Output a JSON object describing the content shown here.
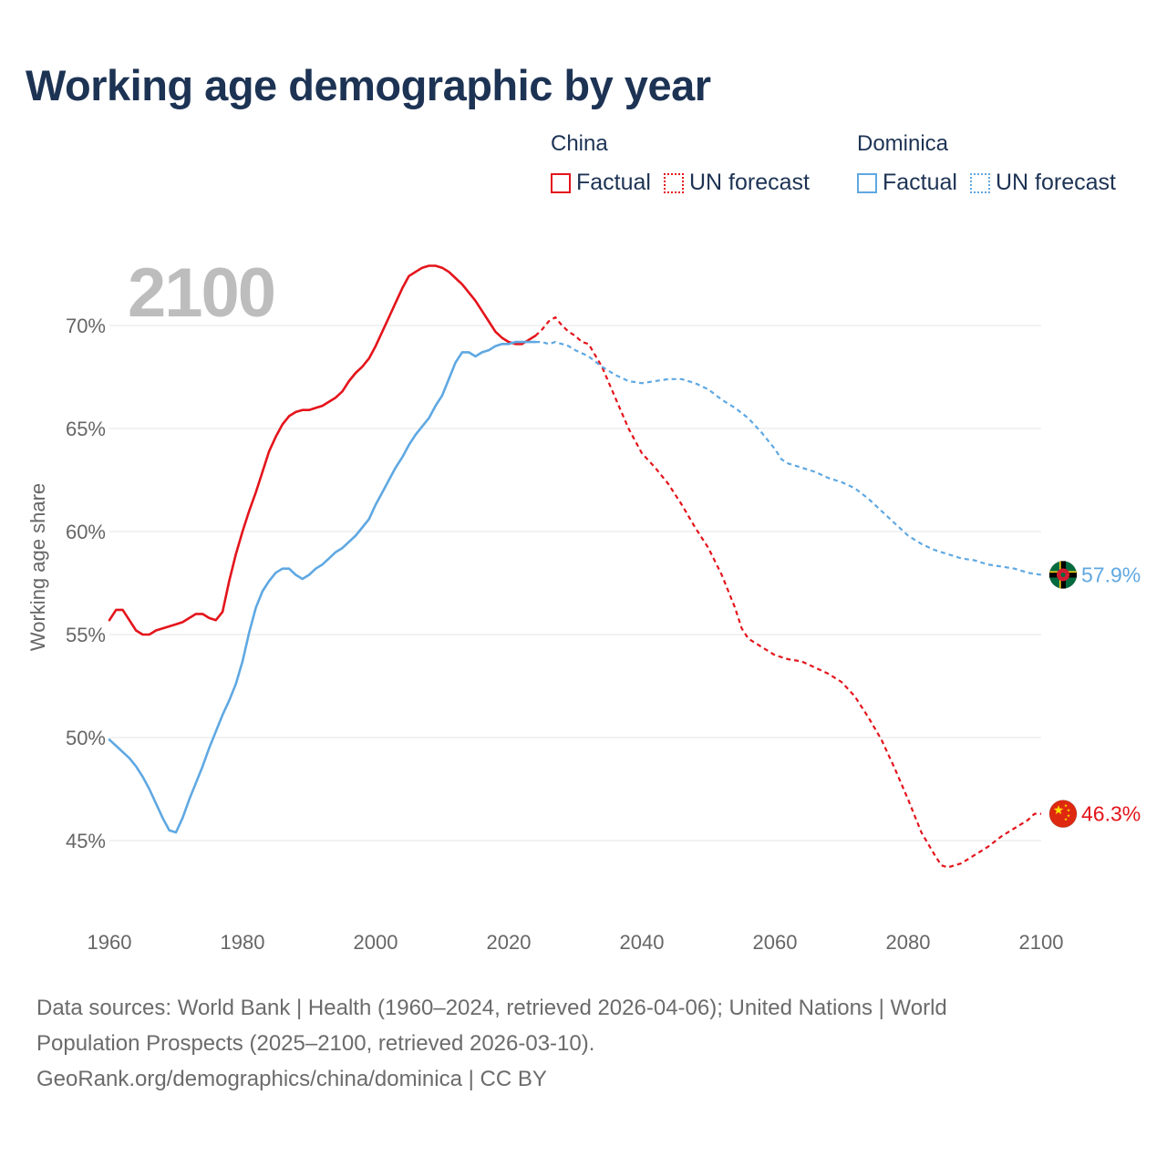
{
  "title": "Working age demographic by year",
  "year_label": "2100",
  "legend": {
    "groups": [
      {
        "name": "China",
        "factual": "Factual",
        "forecast": "UN forecast",
        "color": "#e4141b"
      },
      {
        "name": "Dominica",
        "factual": "Factual",
        "forecast": "UN forecast",
        "color": "#5fa8e2"
      }
    ]
  },
  "footer": {
    "line1": "Data sources: World Bank | Health (1960–2024, retrieved 2026-04-06); United Nations | World",
    "line2": "Population Prospects (2025–2100, retrieved 2026-03-10).",
    "line3": "GeoRank.org/demographics/china/dominica | CC BY"
  },
  "chart_data": {
    "type": "line",
    "title": "Working age demographic by year",
    "xlabel": "",
    "ylabel": "Working age share",
    "xlim": [
      1960,
      2100
    ],
    "ylim": [
      43,
      72.5
    ],
    "x_ticks": [
      1960,
      1980,
      2000,
      2020,
      2040,
      2060,
      2080,
      2100
    ],
    "x_tick_labels": [
      "1960",
      "1980",
      "2000",
      "2020",
      "2040",
      "2060",
      "2080",
      "2100"
    ],
    "y_ticks": [
      45,
      50,
      55,
      60,
      65,
      70
    ],
    "y_tick_labels": [
      "45%",
      "50%",
      "55%",
      "60%",
      "65%",
      "70%"
    ],
    "grid": true,
    "factual_range": [
      1960,
      2024
    ],
    "forecast_range": [
      2024,
      2100
    ],
    "series": [
      {
        "name": "China",
        "color": "#e4141b",
        "end_label": "46.3%",
        "points": [
          [
            1960,
            55.7
          ],
          [
            1961,
            56.2
          ],
          [
            1962,
            56.2
          ],
          [
            1963,
            55.7
          ],
          [
            1964,
            55.2
          ],
          [
            1965,
            55.0
          ],
          [
            1966,
            55.0
          ],
          [
            1967,
            55.2
          ],
          [
            1968,
            55.3
          ],
          [
            1969,
            55.4
          ],
          [
            1970,
            55.5
          ],
          [
            1971,
            55.6
          ],
          [
            1972,
            55.8
          ],
          [
            1973,
            56.0
          ],
          [
            1974,
            56.0
          ],
          [
            1975,
            55.8
          ],
          [
            1976,
            55.7
          ],
          [
            1977,
            56.1
          ],
          [
            1978,
            57.6
          ],
          [
            1979,
            58.9
          ],
          [
            1980,
            60.0
          ],
          [
            1981,
            61.0
          ],
          [
            1982,
            61.9
          ],
          [
            1983,
            62.9
          ],
          [
            1984,
            63.9
          ],
          [
            1985,
            64.6
          ],
          [
            1986,
            65.2
          ],
          [
            1987,
            65.6
          ],
          [
            1988,
            65.8
          ],
          [
            1989,
            65.9
          ],
          [
            1990,
            65.9
          ],
          [
            1991,
            66.0
          ],
          [
            1992,
            66.1
          ],
          [
            1993,
            66.3
          ],
          [
            1994,
            66.5
          ],
          [
            1995,
            66.8
          ],
          [
            1996,
            67.3
          ],
          [
            1997,
            67.7
          ],
          [
            1998,
            68.0
          ],
          [
            1999,
            68.4
          ],
          [
            2000,
            69.0
          ],
          [
            2001,
            69.7
          ],
          [
            2002,
            70.4
          ],
          [
            2003,
            71.1
          ],
          [
            2004,
            71.8
          ],
          [
            2005,
            72.4
          ],
          [
            2006,
            72.6
          ],
          [
            2007,
            72.8
          ],
          [
            2008,
            72.9
          ],
          [
            2009,
            72.9
          ],
          [
            2010,
            72.8
          ],
          [
            2011,
            72.6
          ],
          [
            2012,
            72.3
          ],
          [
            2013,
            72.0
          ],
          [
            2014,
            71.6
          ],
          [
            2015,
            71.2
          ],
          [
            2016,
            70.7
          ],
          [
            2017,
            70.2
          ],
          [
            2018,
            69.7
          ],
          [
            2019,
            69.4
          ],
          [
            2020,
            69.2
          ],
          [
            2021,
            69.1
          ],
          [
            2022,
            69.1
          ],
          [
            2023,
            69.3
          ],
          [
            2024,
            69.5
          ],
          [
            2025,
            69.8
          ],
          [
            2026,
            70.2
          ],
          [
            2027,
            70.4
          ],
          [
            2028,
            70.0
          ],
          [
            2029,
            69.7
          ],
          [
            2030,
            69.5
          ],
          [
            2031,
            69.2
          ],
          [
            2032,
            69.1
          ],
          [
            2034,
            68.0
          ],
          [
            2036,
            66.5
          ],
          [
            2038,
            65.0
          ],
          [
            2040,
            63.8
          ],
          [
            2042,
            63.1
          ],
          [
            2044,
            62.3
          ],
          [
            2046,
            61.3
          ],
          [
            2048,
            60.2
          ],
          [
            2050,
            59.2
          ],
          [
            2052,
            57.9
          ],
          [
            2054,
            56.3
          ],
          [
            2055,
            55.3
          ],
          [
            2056,
            54.8
          ],
          [
            2058,
            54.4
          ],
          [
            2060,
            54.0
          ],
          [
            2062,
            53.8
          ],
          [
            2064,
            53.7
          ],
          [
            2066,
            53.4
          ],
          [
            2068,
            53.1
          ],
          [
            2070,
            52.7
          ],
          [
            2072,
            52.0
          ],
          [
            2074,
            51.0
          ],
          [
            2076,
            49.9
          ],
          [
            2078,
            48.5
          ],
          [
            2080,
            47.0
          ],
          [
            2082,
            45.4
          ],
          [
            2084,
            44.3
          ],
          [
            2085,
            43.8
          ],
          [
            2086,
            43.7
          ],
          [
            2087,
            43.8
          ],
          [
            2088,
            43.9
          ],
          [
            2090,
            44.3
          ],
          [
            2092,
            44.7
          ],
          [
            2094,
            45.2
          ],
          [
            2096,
            45.6
          ],
          [
            2098,
            46.0
          ],
          [
            2099,
            46.3
          ],
          [
            2100,
            46.3
          ]
        ]
      },
      {
        "name": "Dominica",
        "color": "#5fa8e2",
        "end_label": "57.9%",
        "points": [
          [
            1960,
            49.9
          ],
          [
            1961,
            49.6
          ],
          [
            1962,
            49.3
          ],
          [
            1963,
            49.0
          ],
          [
            1964,
            48.6
          ],
          [
            1965,
            48.1
          ],
          [
            1966,
            47.5
          ],
          [
            1967,
            46.8
          ],
          [
            1968,
            46.1
          ],
          [
            1969,
            45.5
          ],
          [
            1970,
            45.4
          ],
          [
            1971,
            46.1
          ],
          [
            1972,
            47.0
          ],
          [
            1973,
            47.8
          ],
          [
            1974,
            48.6
          ],
          [
            1975,
            49.5
          ],
          [
            1976,
            50.3
          ],
          [
            1977,
            51.1
          ],
          [
            1978,
            51.8
          ],
          [
            1979,
            52.6
          ],
          [
            1980,
            53.7
          ],
          [
            1981,
            55.1
          ],
          [
            1982,
            56.3
          ],
          [
            1983,
            57.1
          ],
          [
            1984,
            57.6
          ],
          [
            1985,
            58.0
          ],
          [
            1986,
            58.2
          ],
          [
            1987,
            58.2
          ],
          [
            1988,
            57.9
          ],
          [
            1989,
            57.7
          ],
          [
            1990,
            57.9
          ],
          [
            1991,
            58.2
          ],
          [
            1992,
            58.4
          ],
          [
            1993,
            58.7
          ],
          [
            1994,
            59.0
          ],
          [
            1995,
            59.2
          ],
          [
            1996,
            59.5
          ],
          [
            1997,
            59.8
          ],
          [
            1998,
            60.2
          ],
          [
            1999,
            60.6
          ],
          [
            2000,
            61.3
          ],
          [
            2001,
            61.9
          ],
          [
            2002,
            62.5
          ],
          [
            2003,
            63.1
          ],
          [
            2004,
            63.6
          ],
          [
            2005,
            64.2
          ],
          [
            2006,
            64.7
          ],
          [
            2007,
            65.1
          ],
          [
            2008,
            65.5
          ],
          [
            2009,
            66.1
          ],
          [
            2010,
            66.6
          ],
          [
            2011,
            67.4
          ],
          [
            2012,
            68.2
          ],
          [
            2013,
            68.7
          ],
          [
            2014,
            68.7
          ],
          [
            2015,
            68.5
          ],
          [
            2016,
            68.7
          ],
          [
            2017,
            68.8
          ],
          [
            2018,
            69.0
          ],
          [
            2019,
            69.1
          ],
          [
            2020,
            69.1
          ],
          [
            2021,
            69.2
          ],
          [
            2022,
            69.2
          ],
          [
            2023,
            69.2
          ],
          [
            2024,
            69.2
          ],
          [
            2025,
            69.2
          ],
          [
            2026,
            69.1
          ],
          [
            2027,
            69.2
          ],
          [
            2028,
            69.1
          ],
          [
            2029,
            69.0
          ],
          [
            2030,
            68.8
          ],
          [
            2032,
            68.5
          ],
          [
            2034,
            68.0
          ],
          [
            2036,
            67.6
          ],
          [
            2038,
            67.3
          ],
          [
            2040,
            67.2
          ],
          [
            2042,
            67.3
          ],
          [
            2044,
            67.4
          ],
          [
            2046,
            67.4
          ],
          [
            2048,
            67.2
          ],
          [
            2050,
            66.9
          ],
          [
            2052,
            66.4
          ],
          [
            2054,
            66.0
          ],
          [
            2056,
            65.5
          ],
          [
            2058,
            64.8
          ],
          [
            2060,
            64.0
          ],
          [
            2061,
            63.5
          ],
          [
            2062,
            63.3
          ],
          [
            2064,
            63.1
          ],
          [
            2066,
            62.9
          ],
          [
            2068,
            62.6
          ],
          [
            2070,
            62.4
          ],
          [
            2072,
            62.1
          ],
          [
            2074,
            61.6
          ],
          [
            2076,
            61.0
          ],
          [
            2078,
            60.4
          ],
          [
            2080,
            59.8
          ],
          [
            2082,
            59.4
          ],
          [
            2084,
            59.1
          ],
          [
            2086,
            58.9
          ],
          [
            2088,
            58.7
          ],
          [
            2090,
            58.6
          ],
          [
            2092,
            58.4
          ],
          [
            2094,
            58.3
          ],
          [
            2096,
            58.2
          ],
          [
            2098,
            58.0
          ],
          [
            2100,
            57.9
          ]
        ]
      }
    ]
  }
}
